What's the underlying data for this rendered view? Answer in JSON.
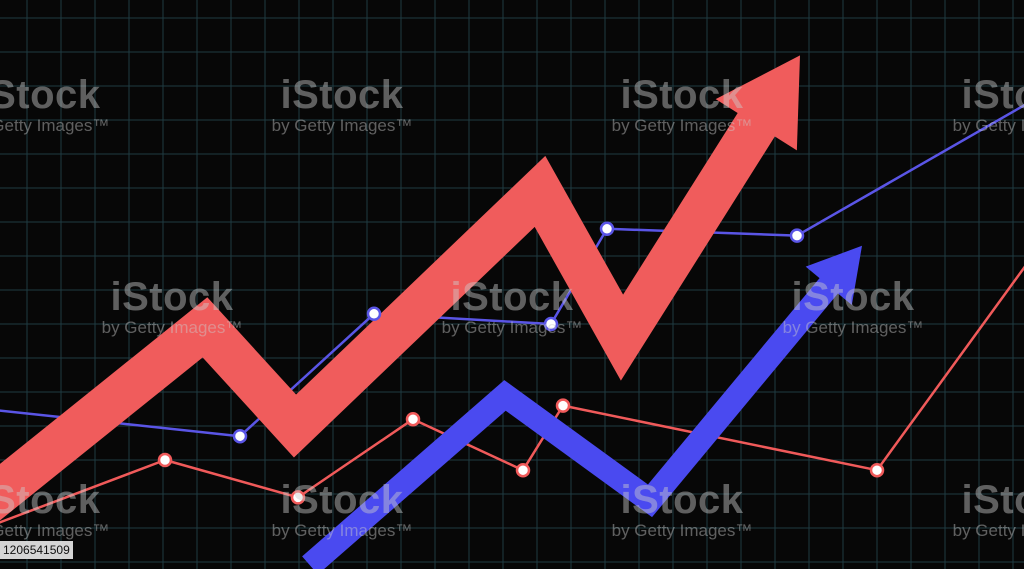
{
  "chart_data": {
    "type": "line",
    "title": "",
    "xlabel": "",
    "ylabel": "",
    "grid": true,
    "series": [
      {
        "kind": "line",
        "color": "#5a55e6",
        "markers": true,
        "points": [
          [
            -15,
            4
          ],
          [
            240,
            3.2
          ],
          [
            374,
            6.8
          ],
          [
            551,
            6.5
          ],
          [
            607,
            9.3
          ],
          [
            797,
            9.1
          ],
          [
            1040,
            13.2
          ]
        ]
      },
      {
        "kind": "line",
        "color": "#f05a5a",
        "markers": true,
        "points": [
          [
            -15,
            0.5
          ],
          [
            165,
            2.5
          ],
          [
            298,
            1.4
          ],
          [
            413,
            3.7
          ],
          [
            523,
            2.2
          ],
          [
            563,
            4.1
          ],
          [
            877,
            2.2
          ],
          [
            1040,
            8.8
          ]
        ]
      },
      {
        "kind": "arrow",
        "color": "#f05c5c",
        "points": [
          [
            -15,
            1.2
          ],
          [
            205,
            6.4
          ],
          [
            295,
            3.5
          ],
          [
            540,
            10.4
          ],
          [
            622,
            6.1
          ],
          [
            800,
            14.4
          ]
        ]
      },
      {
        "kind": "arrow",
        "color": "#4a4af0",
        "points": [
          [
            310,
            -0.6
          ],
          [
            505,
            4.4
          ],
          [
            650,
            1.3
          ],
          [
            862,
            8.8
          ]
        ]
      }
    ]
  },
  "watermark": {
    "brand": "iStock",
    "credit": "by Getty Images™"
  },
  "image_id": "1206541509"
}
